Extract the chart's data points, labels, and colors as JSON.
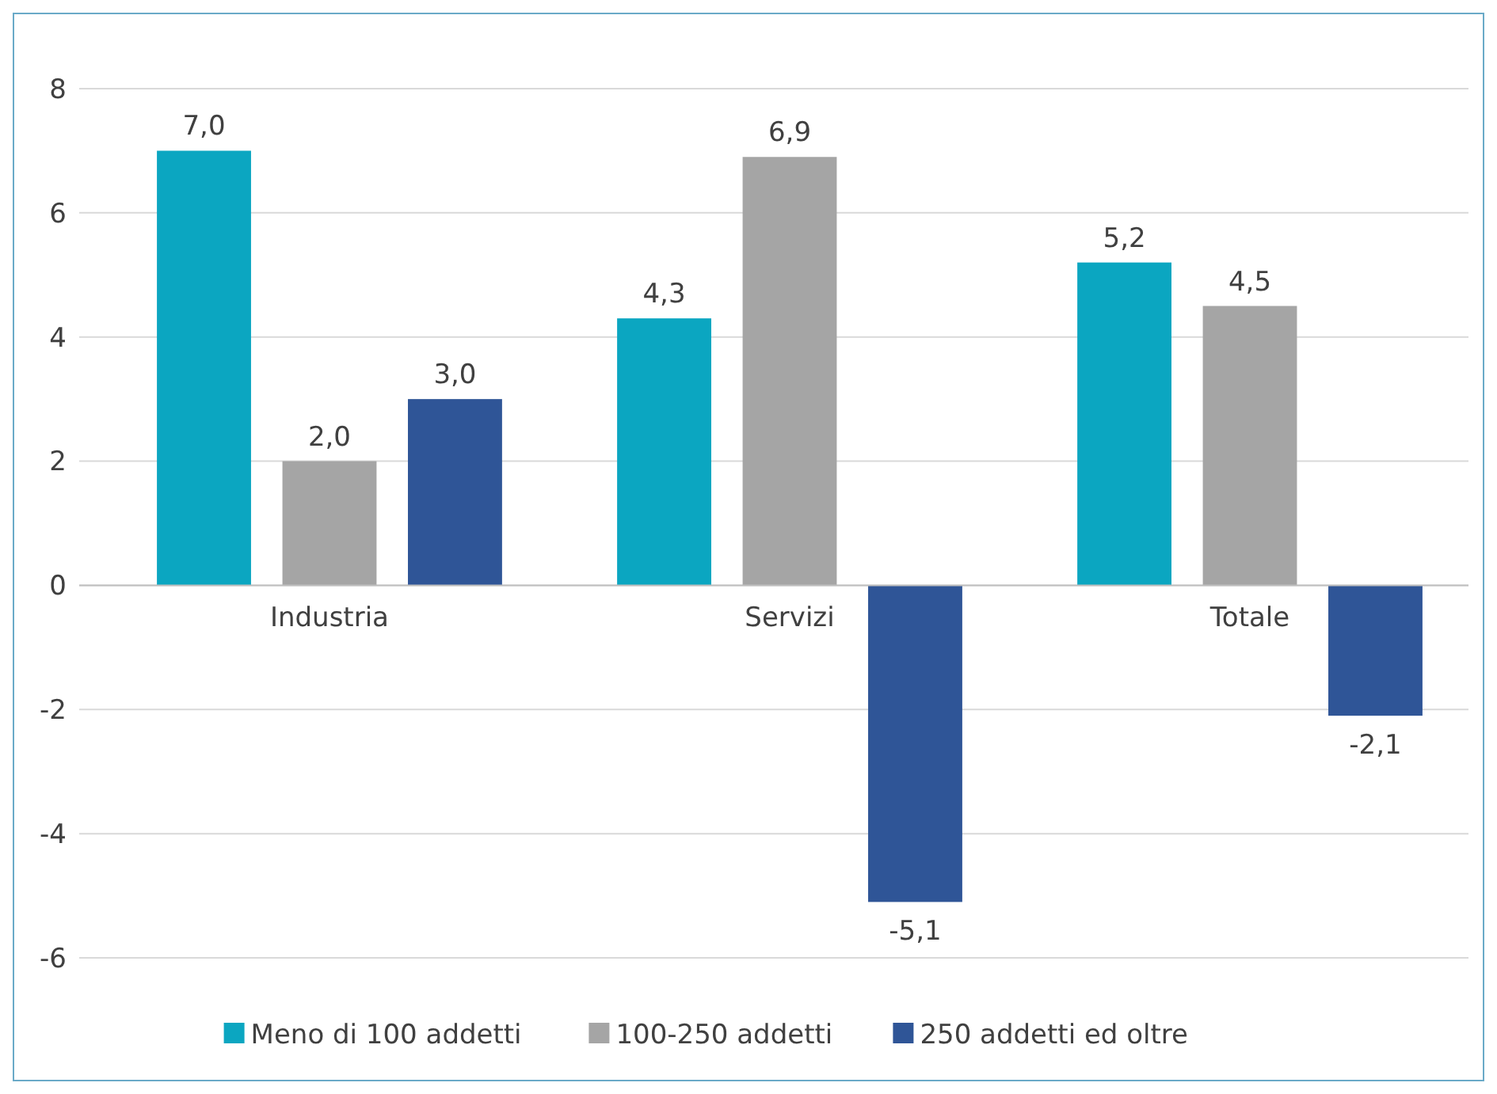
{
  "chart_data": {
    "type": "bar",
    "categories": [
      "Industria",
      "Servizi",
      "Totale"
    ],
    "series": [
      {
        "name": "Meno di 100 addetti",
        "color": "#0ba6c1",
        "values": [
          7.0,
          4.3,
          5.2
        ],
        "value_labels": [
          "7,0",
          "4,3",
          "5,2"
        ]
      },
      {
        "name": "100-250 addetti",
        "color": "#a5a5a5",
        "values": [
          2.0,
          6.9,
          4.5
        ],
        "value_labels": [
          "2,0",
          "6,9",
          "4,5"
        ]
      },
      {
        "name": "250 addetti ed oltre",
        "color": "#2f5597",
        "values": [
          3.0,
          -5.1,
          -2.1
        ],
        "value_labels": [
          "3,0",
          "-5,1",
          "-2,1"
        ]
      }
    ],
    "ylim": [
      -6,
      8
    ],
    "yticks": [
      -6,
      -4,
      -2,
      0,
      2,
      4,
      6,
      8
    ],
    "grid": "y",
    "legend": "bottom"
  }
}
